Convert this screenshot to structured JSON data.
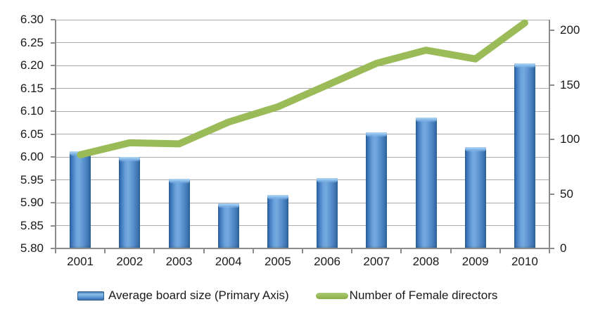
{
  "chart_data": {
    "type": "combo",
    "title": "",
    "categories": [
      "2001",
      "2002",
      "2003",
      "2004",
      "2005",
      "2006",
      "2007",
      "2008",
      "2009",
      "2010"
    ],
    "series": [
      {
        "name": "Average board size (Primary Axis)",
        "type": "bar",
        "axis": "primary",
        "color": "#4f81bd",
        "values": [
          6.013,
          6.0,
          5.953,
          5.898,
          5.917,
          5.954,
          6.054,
          6.086,
          6.022,
          6.205
        ]
      },
      {
        "name": "Number of Female directors",
        "type": "line",
        "axis": "secondary",
        "color": "#9bbb59",
        "values": [
          86,
          97,
          96,
          116,
          130,
          150,
          170,
          182,
          174,
          207
        ]
      }
    ],
    "primary_axis": {
      "min": 5.8,
      "max": 6.3,
      "step": 0.05,
      "tick_labels": [
        "6.30",
        "6.25",
        "6.20",
        "6.15",
        "6.10",
        "6.05",
        "6.00",
        "5.95",
        "5.90",
        "5.85",
        "5.80"
      ]
    },
    "secondary_axis": {
      "min": 0,
      "max": 210,
      "step": 50,
      "tick_labels": [
        "200",
        "150",
        "100",
        "50",
        "0"
      ]
    },
    "xlabel": "",
    "ylabel": "",
    "grid": true,
    "legend_position": "bottom"
  },
  "colors": {
    "bar": "#4f81bd",
    "line": "#9bbb59",
    "gridline": "#ababab",
    "axis": "#8c8c8c",
    "text": "#1a1a1a"
  }
}
